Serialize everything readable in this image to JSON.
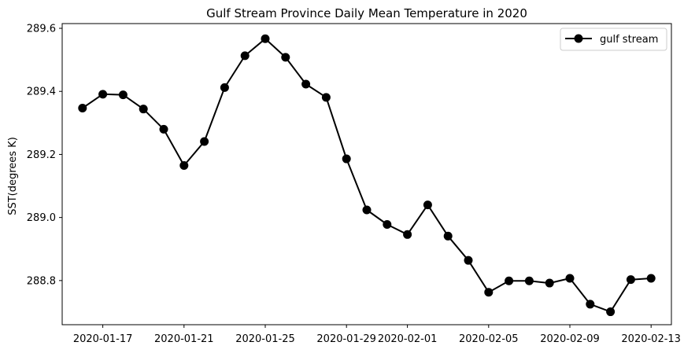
{
  "chart_data": {
    "type": "line",
    "title": "Gulf Stream Province Daily Mean Temperature in 2020",
    "xlabel": "",
    "ylabel": "SST(degrees K)",
    "legend_position": "top-right",
    "grid": false,
    "line_color": "#000000",
    "marker": "circle",
    "ylim": [
      288.66,
      289.615
    ],
    "xlim": [
      "2020-01-15",
      "2020-02-14"
    ],
    "xticks": [
      "2020-01-17",
      "2020-01-21",
      "2020-01-25",
      "2020-01-29",
      "2020-02-01",
      "2020-02-05",
      "2020-02-09",
      "2020-02-13"
    ],
    "yticks": [
      "288.8",
      "289.0",
      "289.2",
      "289.4",
      "289.6"
    ],
    "series": [
      {
        "name": "gulf stream",
        "x": [
          "2020-01-16",
          "2020-01-17",
          "2020-01-18",
          "2020-01-19",
          "2020-01-20",
          "2020-01-21",
          "2020-01-22",
          "2020-01-23",
          "2020-01-24",
          "2020-01-25",
          "2020-01-26",
          "2020-01-27",
          "2020-01-28",
          "2020-01-29",
          "2020-01-30",
          "2020-01-31",
          "2020-02-01",
          "2020-02-02",
          "2020-02-03",
          "2020-02-04",
          "2020-02-05",
          "2020-02-06",
          "2020-02-07",
          "2020-02-08",
          "2020-02-09",
          "2020-02-10",
          "2020-02-11",
          "2020-02-12",
          "2020-02-13"
        ],
        "values": [
          289.347,
          289.391,
          289.389,
          289.344,
          289.28,
          289.165,
          289.241,
          289.412,
          289.513,
          289.567,
          289.508,
          289.423,
          289.381,
          289.186,
          289.024,
          288.978,
          288.946,
          289.04,
          288.941,
          288.864,
          288.763,
          288.799,
          288.799,
          288.792,
          288.807,
          288.725,
          288.701,
          288.803,
          288.807
        ]
      }
    ]
  }
}
